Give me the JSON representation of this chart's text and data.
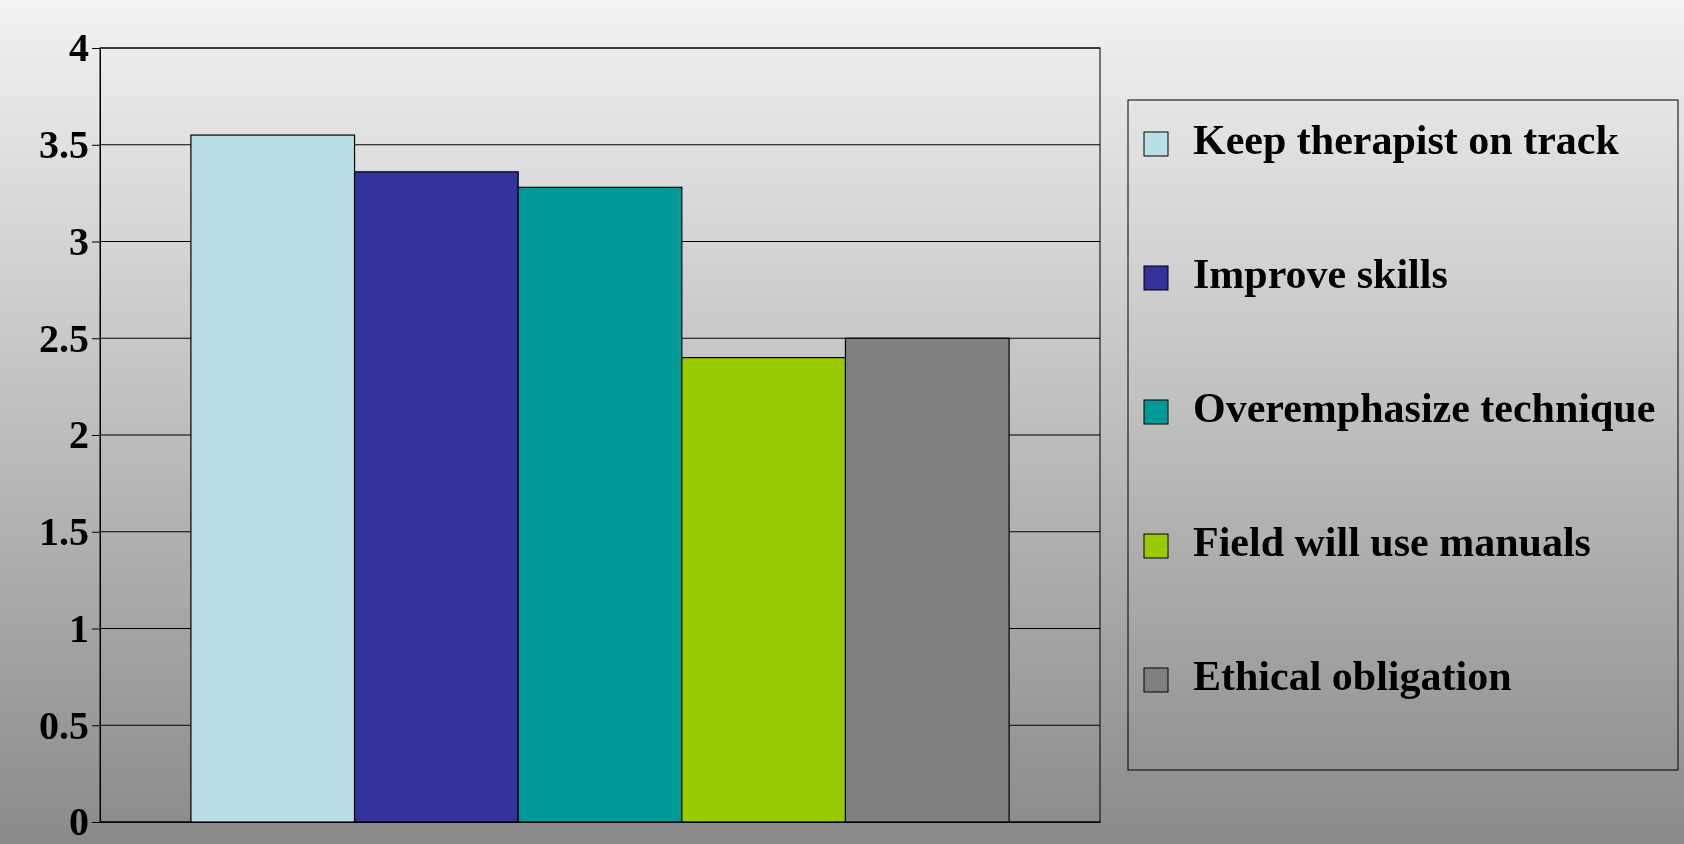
{
  "chart_data": {
    "type": "bar",
    "categories": [
      null
    ],
    "series": [
      {
        "name": "Keep therapist on track",
        "color": "#b8e0e4",
        "values": [
          3.55
        ]
      },
      {
        "name": "Improve skills",
        "color": "#333399",
        "values": [
          3.36
        ]
      },
      {
        "name": "Overemphasize technique",
        "color": "#009999",
        "values": [
          3.28
        ]
      },
      {
        "name": "Field will use manuals",
        "color": "#99cc00",
        "values": [
          2.4
        ]
      },
      {
        "name": "Ethical obligation",
        "color": "#808080",
        "values": [
          2.5
        ]
      }
    ],
    "ylim": [
      0,
      4
    ],
    "yticks": [
      0,
      0.5,
      1,
      1.5,
      2,
      2.5,
      3,
      3.5,
      4
    ],
    "grid": "y",
    "legend": "right"
  }
}
